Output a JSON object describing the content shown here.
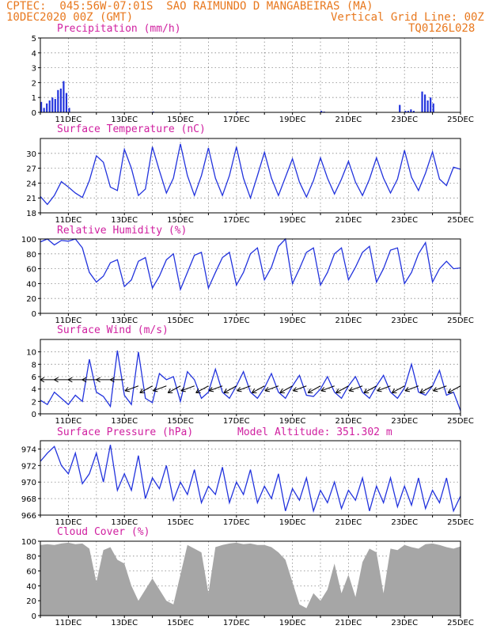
{
  "header": {
    "station": "CPTEC:  045:56W-07:01S  SAO RAIMUNDO D MANGABEIRAS (MA)",
    "date": "10DEC2020 00Z (GMT)",
    "grid_note": "Vertical Grid Line: 00Z",
    "code": "TQ0126L028"
  },
  "date_labels": [
    "11DEC",
    "13DEC",
    "15DEC",
    "17DEC",
    "19DEC",
    "21DEC",
    "23DEC",
    "25DEC"
  ],
  "chart_data": [
    {
      "id": "precip",
      "type": "bar",
      "title": "Precipitation (mm/h)",
      "ylim": [
        0,
        5
      ],
      "yticks": [
        0,
        1,
        2,
        3,
        4,
        5
      ],
      "x_range_days": [
        0,
        15
      ],
      "x": [
        0.0,
        0.1,
        0.2,
        0.3,
        0.4,
        0.5,
        0.6,
        0.7,
        0.8,
        0.9,
        1.0,
        4.0,
        7.0,
        10.0,
        10.1,
        12.8,
        13.0,
        13.1,
        13.2,
        13.3,
        13.6,
        13.7,
        13.8,
        13.9,
        14.0
      ],
      "values": [
        0.7,
        0.3,
        0.6,
        0.8,
        1.0,
        0.9,
        1.5,
        1.6,
        2.1,
        1.3,
        0.3,
        0.05,
        0.05,
        0.1,
        0.05,
        0.5,
        0.1,
        0.1,
        0.2,
        0.1,
        1.4,
        1.2,
        0.8,
        1.0,
        0.6
      ]
    },
    {
      "id": "temp",
      "type": "line",
      "title": "Surface Temperature (nC)",
      "ylim": [
        18,
        33
      ],
      "yticks": [
        18,
        21,
        24,
        27,
        30
      ],
      "x": [
        0,
        0.25,
        0.5,
        0.75,
        1.0,
        1.25,
        1.5,
        1.75,
        2.0,
        2.25,
        2.5,
        2.75,
        3.0,
        3.25,
        3.5,
        3.75,
        4.0,
        4.25,
        4.5,
        4.75,
        5.0,
        5.25,
        5.5,
        5.75,
        6.0,
        6.25,
        6.5,
        6.75,
        7.0,
        7.25,
        7.5,
        7.75,
        8.0,
        8.25,
        8.5,
        8.75,
        9.0,
        9.25,
        9.5,
        9.75,
        10.0,
        10.25,
        10.5,
        10.75,
        11.0,
        11.25,
        11.5,
        11.75,
        12.0,
        12.25,
        12.5,
        12.75,
        13.0,
        13.25,
        13.5,
        13.75,
        14.0,
        14.25,
        14.5,
        14.75,
        15.0
      ],
      "values": [
        21.3,
        19.7,
        21.5,
        24.3,
        23.2,
        22.0,
        21.1,
        24.5,
        29.5,
        28.2,
        23.2,
        22.5,
        30.8,
        27.0,
        21.5,
        22.8,
        31.3,
        26.5,
        22.0,
        25.0,
        31.9,
        25.5,
        21.5,
        25.5,
        31.1,
        25.0,
        21.5,
        25.5,
        31.3,
        25.0,
        21.0,
        25.5,
        30.2,
        25.0,
        21.5,
        25.2,
        28.9,
        24.2,
        21.2,
        24.5,
        29.1,
        25.0,
        21.8,
        24.8,
        28.4,
        24.2,
        21.5,
        24.8,
        29.1,
        25.0,
        22.0,
        24.8,
        30.6,
        25.2,
        22.5,
        26.0,
        30.3,
        24.8,
        23.5,
        27.2,
        26.8
      ]
    },
    {
      "id": "rh",
      "type": "line",
      "title": "Relative Humidity (%)",
      "ylim": [
        0,
        100
      ],
      "yticks": [
        0,
        20,
        40,
        60,
        80,
        100
      ],
      "x": [
        0,
        0.25,
        0.5,
        0.75,
        1.0,
        1.25,
        1.5,
        1.75,
        2.0,
        2.25,
        2.5,
        2.75,
        3.0,
        3.25,
        3.5,
        3.75,
        4.0,
        4.25,
        4.5,
        4.75,
        5.0,
        5.25,
        5.5,
        5.75,
        6.0,
        6.25,
        6.5,
        6.75,
        7.0,
        7.25,
        7.5,
        7.75,
        8.0,
        8.25,
        8.5,
        8.75,
        9.0,
        9.25,
        9.5,
        9.75,
        10.0,
        10.25,
        10.5,
        10.75,
        11.0,
        11.25,
        11.5,
        11.75,
        12.0,
        12.25,
        12.5,
        12.75,
        13.0,
        13.25,
        13.5,
        13.75,
        14.0,
        14.25,
        14.5,
        14.75,
        15.0
      ],
      "values": [
        96,
        100,
        92,
        98,
        97,
        100,
        88,
        55,
        42,
        50,
        68,
        72,
        36,
        45,
        70,
        75,
        34,
        50,
        72,
        80,
        32,
        55,
        78,
        82,
        34,
        55,
        75,
        82,
        38,
        55,
        80,
        88,
        45,
        62,
        90,
        100,
        40,
        60,
        82,
        88,
        38,
        55,
        80,
        88,
        45,
        62,
        82,
        90,
        42,
        60,
        85,
        88,
        40,
        55,
        80,
        95,
        42,
        60,
        70,
        60,
        61
      ]
    },
    {
      "id": "wind",
      "type": "line",
      "title": "Surface Wind (m/s)",
      "ylim": [
        0,
        12
      ],
      "yticks": [
        0,
        2,
        4,
        6,
        8,
        10
      ],
      "x": [
        0,
        0.25,
        0.5,
        0.75,
        1.0,
        1.25,
        1.5,
        1.75,
        2.0,
        2.25,
        2.5,
        2.75,
        3.0,
        3.25,
        3.5,
        3.75,
        4.0,
        4.25,
        4.5,
        4.75,
        5.0,
        5.25,
        5.5,
        5.75,
        6.0,
        6.25,
        6.5,
        6.75,
        7.0,
        7.25,
        7.5,
        7.75,
        8.0,
        8.25,
        8.5,
        8.75,
        9.0,
        9.25,
        9.5,
        9.75,
        10.0,
        10.25,
        10.5,
        10.75,
        11.0,
        11.25,
        11.5,
        11.75,
        12.0,
        12.25,
        12.5,
        12.75,
        13.0,
        13.25,
        13.5,
        13.75,
        14.0,
        14.25,
        14.5,
        14.75,
        15.0
      ],
      "values": [
        2.2,
        1.5,
        3.5,
        2.5,
        1.5,
        3.0,
        2.0,
        8.8,
        3.5,
        2.8,
        1.2,
        10.2,
        3.0,
        1.5,
        10.0,
        2.5,
        1.8,
        6.5,
        5.5,
        6.0,
        2.0,
        6.8,
        5.5,
        2.5,
        3.5,
        7.2,
        3.5,
        2.5,
        4.5,
        6.8,
        3.5,
        2.5,
        4.2,
        6.5,
        3.5,
        2.5,
        4.5,
        6.2,
        3.0,
        2.8,
        4.0,
        6.0,
        3.5,
        2.5,
        4.5,
        6.0,
        3.5,
        2.5,
        4.5,
        6.2,
        3.5,
        2.5,
        4.2,
        8.0,
        3.5,
        3.0,
        4.5,
        7.0,
        3.0,
        3.5,
        0.5
      ],
      "arrow_positions": [
        0.5,
        1.0,
        1.5,
        2.0,
        2.5,
        3.0,
        3.5,
        4.0,
        4.5,
        5.0,
        5.5,
        6.0,
        6.5,
        7.0,
        7.5,
        8.0,
        8.5,
        9.0,
        9.5,
        10.0,
        10.5,
        11.0,
        11.5,
        12.0,
        12.5,
        13.0,
        13.5,
        14.0,
        14.5,
        15.0
      ]
    },
    {
      "id": "pressure",
      "type": "line",
      "title": "Surface Pressure (hPa)",
      "subtitle": "Model Altitude: 351.302 m",
      "ylim": [
        966,
        975
      ],
      "yticks": [
        966,
        968,
        970,
        972,
        974
      ],
      "x": [
        0,
        0.25,
        0.5,
        0.75,
        1.0,
        1.25,
        1.5,
        1.75,
        2.0,
        2.25,
        2.5,
        2.75,
        3.0,
        3.25,
        3.5,
        3.75,
        4.0,
        4.25,
        4.5,
        4.75,
        5.0,
        5.25,
        5.5,
        5.75,
        6.0,
        6.25,
        6.5,
        6.75,
        7.0,
        7.25,
        7.5,
        7.75,
        8.0,
        8.25,
        8.5,
        8.75,
        9.0,
        9.25,
        9.5,
        9.75,
        10.0,
        10.25,
        10.5,
        10.75,
        11.0,
        11.25,
        11.5,
        11.75,
        12.0,
        12.25,
        12.5,
        12.75,
        13.0,
        13.25,
        13.5,
        13.75,
        14.0,
        14.25,
        14.5,
        14.75,
        15.0
      ],
      "values": [
        972.5,
        973.5,
        974.3,
        972.0,
        971.0,
        973.5,
        969.8,
        971.0,
        973.5,
        970.0,
        974.5,
        969.0,
        971.0,
        969.0,
        973.2,
        968.0,
        970.5,
        969.2,
        972.0,
        967.8,
        970.0,
        968.5,
        971.5,
        967.5,
        969.5,
        968.5,
        971.8,
        967.5,
        970.0,
        968.5,
        971.5,
        967.5,
        969.5,
        968.0,
        971.0,
        966.5,
        969.2,
        967.8,
        970.5,
        966.5,
        969.0,
        967.5,
        970.0,
        966.8,
        969.0,
        967.8,
        970.5,
        966.5,
        969.5,
        967.5,
        970.5,
        967.0,
        969.5,
        967.2,
        970.5,
        966.8,
        969.0,
        967.5,
        970.5,
        966.5,
        968.3
      ]
    },
    {
      "id": "cloud",
      "type": "area",
      "title": "Cloud Cover (%)",
      "ylim": [
        0,
        100
      ],
      "yticks": [
        0,
        20,
        40,
        60,
        80,
        100
      ],
      "x": [
        0,
        0.25,
        0.5,
        0.75,
        1.0,
        1.25,
        1.5,
        1.75,
        2.0,
        2.25,
        2.5,
        2.75,
        3.0,
        3.25,
        3.5,
        3.75,
        4.0,
        4.25,
        4.5,
        4.75,
        5.0,
        5.25,
        5.5,
        5.75,
        6.0,
        6.25,
        6.5,
        6.75,
        7.0,
        7.25,
        7.5,
        7.75,
        8.0,
        8.25,
        8.5,
        8.75,
        9.0,
        9.25,
        9.5,
        9.75,
        10.0,
        10.25,
        10.5,
        10.75,
        11.0,
        11.25,
        11.5,
        11.75,
        12.0,
        12.25,
        12.5,
        12.75,
        13.0,
        13.25,
        13.5,
        13.75,
        14.0,
        14.25,
        14.5,
        14.75,
        15.0
      ],
      "values": [
        95,
        96,
        95,
        97,
        98,
        96,
        97,
        90,
        45,
        88,
        92,
        75,
        70,
        40,
        20,
        35,
        50,
        35,
        20,
        15,
        55,
        95,
        90,
        85,
        30,
        92,
        95,
        97,
        98,
        96,
        97,
        95,
        95,
        92,
        85,
        75,
        45,
        15,
        10,
        30,
        20,
        35,
        70,
        30,
        55,
        25,
        72,
        90,
        85,
        30,
        90,
        88,
        95,
        92,
        90,
        96,
        97,
        95,
        92,
        90,
        93
      ]
    }
  ]
}
